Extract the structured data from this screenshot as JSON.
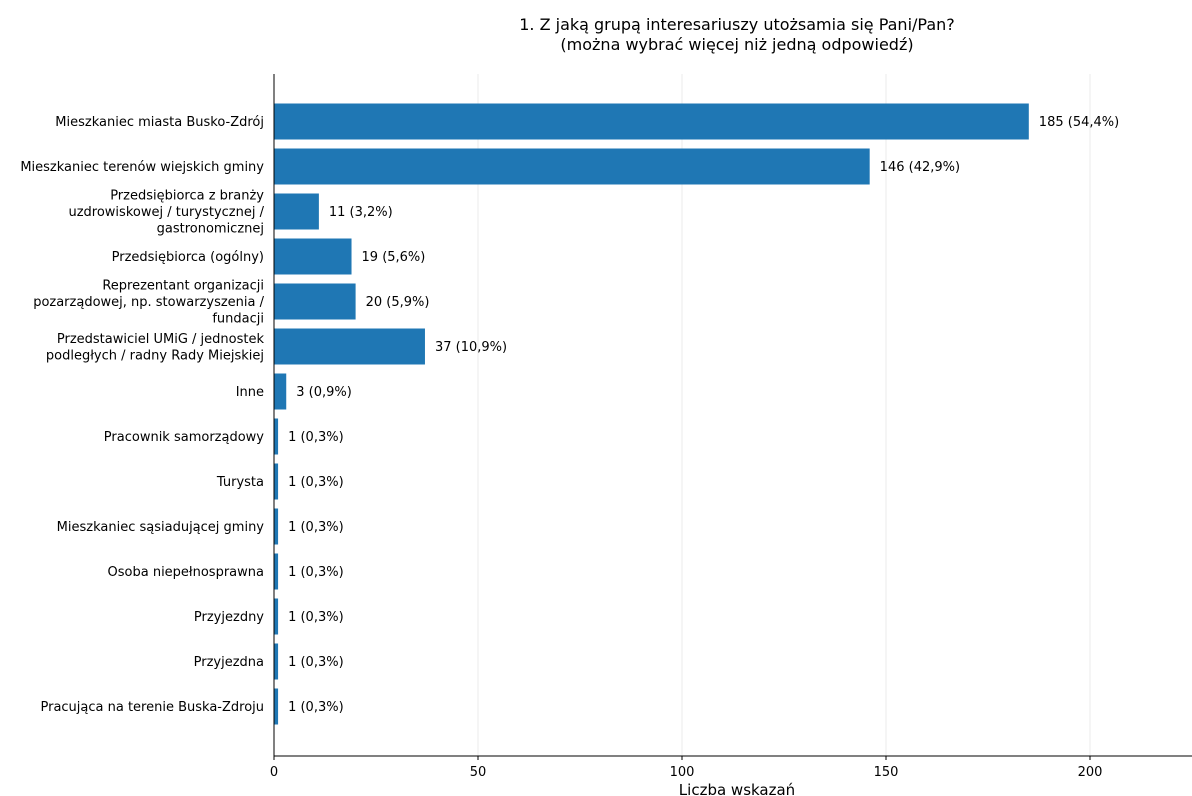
{
  "chart_data": {
    "type": "bar",
    "orientation": "horizontal",
    "title": [
      "1. Z jaką grupą interesariuszy utożsamia się Pani/Pan?",
      "(można wybrać więcej niż jedną odpowiedź)"
    ],
    "xlabel": "Liczba wskazań",
    "ylabel": "",
    "xlim": [
      0,
      225
    ],
    "xticks": [
      0,
      50,
      100,
      150,
      200
    ],
    "grid": "vertical",
    "bar_color": "#1f77b4",
    "categories": [
      [
        "Mieszkaniec miasta Busko-Zdrój"
      ],
      [
        "Mieszkaniec terenów wiejskich gminy"
      ],
      [
        "Przedsiębiorca z branży",
        "uzdrowiskowej / turystycznej /",
        "gastronomicznej"
      ],
      [
        "Przedsiębiorca (ogólny)"
      ],
      [
        "Reprezentant organizacji",
        "pozarządowej, np. stowarzyszenia /",
        "fundacji"
      ],
      [
        "Przedstawiciel UMiG / jednostek",
        "podległych / radny Rady Miejskiej"
      ],
      [
        "Inne"
      ],
      [
        "Pracownik samorządowy"
      ],
      [
        "Turysta"
      ],
      [
        "Mieszkaniec sąsiadującej gminy"
      ],
      [
        "Osoba niepełnosprawna"
      ],
      [
        "Przyjezdny"
      ],
      [
        "Przyjezdna"
      ],
      [
        "Pracująca na terenie Buska-Zdroju"
      ]
    ],
    "values": [
      185,
      146,
      11,
      19,
      20,
      37,
      3,
      1,
      1,
      1,
      1,
      1,
      1,
      1
    ],
    "value_labels": [
      "185 (54,4%)",
      "146 (42,9%)",
      "11 (3,2%)",
      "19 (5,6%)",
      "20 (5,9%)",
      "37 (10,9%)",
      "3 (0,9%)",
      "1 (0,3%)",
      "1 (0,3%)",
      "1 (0,3%)",
      "1 (0,3%)",
      "1 (0,3%)",
      "1 (0,3%)",
      "1 (0,3%)"
    ]
  }
}
